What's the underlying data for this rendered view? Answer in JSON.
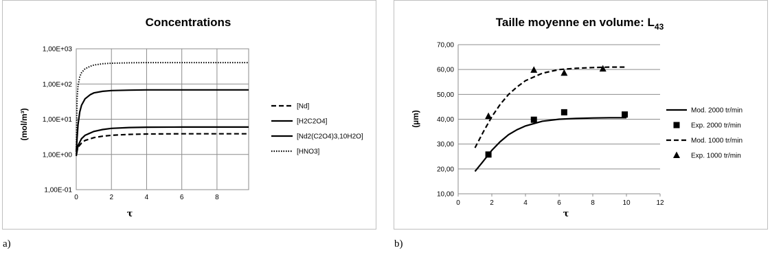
{
  "captions": {
    "a": "a)",
    "b": "b)"
  },
  "chart_data": [
    {
      "type": "line",
      "title": "Concentrations",
      "xlabel": "τ",
      "ylabel": "(mol/m³)",
      "yscale": "log",
      "xlim": [
        0,
        9.8
      ],
      "ylim": [
        0.1,
        1000
      ],
      "xticks": [
        "0",
        "2",
        "4",
        "6",
        "8"
      ],
      "yticks": [
        "1,00E-01",
        "1,00E+00",
        "1,00E+01",
        "1,00E+02",
        "1,00E+03"
      ],
      "grid": true,
      "legend_position": "right",
      "series": [
        {
          "name": "[Nd]",
          "style": "dashed",
          "x": [
            0,
            0.1,
            0.3,
            0.5,
            1,
            1.5,
            2,
            3,
            4,
            6,
            8,
            9.8
          ],
          "values": [
            1.05,
            1.6,
            2.1,
            2.5,
            3.0,
            3.3,
            3.5,
            3.7,
            3.8,
            3.85,
            3.85,
            3.85
          ]
        },
        {
          "name": "[H2C2O4]",
          "style": "solid",
          "x": [
            0,
            0.05,
            0.1,
            0.2,
            0.3,
            0.5,
            0.8,
            1,
            1.5,
            2,
            3,
            4,
            6,
            8,
            9.8
          ],
          "values": [
            1.2,
            3.0,
            7.0,
            16,
            25,
            38,
            50,
            56,
            62,
            65,
            67,
            68,
            68,
            68,
            68
          ]
        },
        {
          "name": "[Nd2(C2O4)3,10H2O]",
          "style": "solid",
          "x": [
            0,
            0.1,
            0.3,
            0.5,
            1,
            1.5,
            2,
            3,
            4,
            6,
            8,
            9.8
          ],
          "values": [
            0.9,
            1.8,
            2.8,
            3.5,
            4.5,
            5.1,
            5.5,
            5.8,
            5.95,
            6.0,
            6.0,
            6.0
          ]
        },
        {
          "name": "[HNO3]",
          "style": "dotted",
          "x": [
            0,
            0.02,
            0.05,
            0.1,
            0.2,
            0.3,
            0.5,
            0.8,
            1,
            1.5,
            2,
            3,
            4,
            6,
            8,
            9.8
          ],
          "values": [
            1.0,
            8,
            40,
            90,
            160,
            210,
            270,
            320,
            345,
            375,
            390,
            400,
            405,
            405,
            405,
            405
          ]
        }
      ]
    },
    {
      "type": "line",
      "title": "Taille moyenne en volume: L",
      "title_sub": "43",
      "xlabel": "τ",
      "ylabel": "(µm)",
      "xlim": [
        0,
        12
      ],
      "ylim": [
        10,
        70
      ],
      "xticks": [
        "0",
        "2",
        "4",
        "6",
        "8",
        "10",
        "12"
      ],
      "yticks": [
        "10,00",
        "20,00",
        "30,00",
        "40,00",
        "50,00",
        "60,00",
        "70,00"
      ],
      "grid": true,
      "legend_position": "right",
      "series": [
        {
          "name": "Mod. 2000 tr/min",
          "style": "solid",
          "x": [
            1,
            1.5,
            2,
            2.5,
            3,
            3.5,
            4,
            5,
            6,
            7,
            8,
            9,
            10
          ],
          "values": [
            19,
            23.2,
            27.5,
            31,
            33.8,
            35.8,
            37.3,
            39.2,
            40,
            40.3,
            40.5,
            40.6,
            40.6
          ]
        },
        {
          "name": "Exp. 2000 tr/min",
          "style": "square",
          "x": [
            1.8,
            4.5,
            6.3,
            9.9
          ],
          "values": [
            25.8,
            39.8,
            42.8,
            41.9
          ]
        },
        {
          "name": "Mod. 1000 tr/min",
          "style": "dashed",
          "x": [
            1,
            1.5,
            2,
            2.5,
            3,
            3.5,
            4,
            5,
            6,
            7,
            8,
            9,
            10
          ],
          "values": [
            28.5,
            35,
            41,
            46,
            50,
            53,
            55.5,
            58.5,
            60,
            60.5,
            60.8,
            61,
            61
          ]
        },
        {
          "name": "Exp. 1000 tr/min",
          "style": "triangle",
          "x": [
            1.8,
            4.5,
            6.3,
            8.6
          ],
          "values": [
            41.2,
            59.8,
            58.6,
            60.3
          ]
        }
      ]
    }
  ]
}
